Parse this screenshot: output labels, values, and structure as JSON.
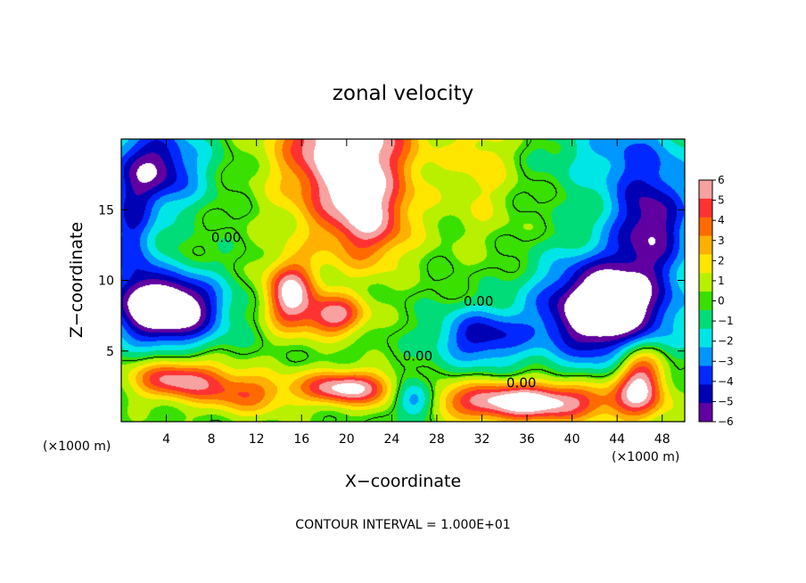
{
  "chart_data": {
    "type": "heatmap",
    "title": "zonal velocity",
    "xlabel": "X−coordinate",
    "ylabel": "Z−coordinate",
    "x_unit_label_left": "(×1000 m)",
    "x_unit_label_right": "(×1000 m)",
    "footer": "CONTOUR INTERVAL = 1.000E+01",
    "xlim": [
      0,
      50
    ],
    "ylim": [
      0,
      20
    ],
    "x_ticks": [
      4,
      8,
      12,
      16,
      20,
      24,
      28,
      32,
      36,
      40,
      44,
      48
    ],
    "y_ticks": [
      5,
      10,
      15
    ],
    "colorbar": {
      "min": -6,
      "max": 6,
      "ticks": [
        6,
        5,
        4,
        3,
        2,
        1,
        0,
        -1,
        -2,
        -3,
        -4,
        -5,
        -6
      ],
      "tick_labels": [
        "6",
        "5",
        "4",
        "3",
        "2",
        "1",
        "0",
        "−1",
        "−2",
        "−3",
        "−4",
        "−5",
        "−6"
      ],
      "colors": [
        "#f7a1a1",
        "#ff3232",
        "#ff6a00",
        "#ffb000",
        "#ffe600",
        "#b8f000",
        "#3ae000",
        "#00dc78",
        "#00e6e6",
        "#0096ff",
        "#0028ff",
        "#0000b4",
        "#6000a0"
      ],
      "over_color": "#ffffff",
      "under_color": "#ffffff"
    },
    "contour_labels": [
      {
        "text": "0.00",
        "x": 9.3,
        "z": 13.0
      },
      {
        "text": "0.00",
        "x": 31.7,
        "z": 8.5
      },
      {
        "text": "0.00",
        "x": 26.3,
        "z": 4.6
      },
      {
        "text": "0.00",
        "x": 35.5,
        "z": 2.7
      }
    ],
    "features": [
      {
        "kind": "jet",
        "sign": 1,
        "x": 20,
        "z": 20,
        "sx": 5.5,
        "sz": 6,
        "amp": 9
      },
      {
        "kind": "jet",
        "sign": 1,
        "x": 22,
        "z": 14,
        "sx": 3.5,
        "sz": 3,
        "amp": 4
      },
      {
        "kind": "jet",
        "sign": 1,
        "x": 15,
        "z": 9,
        "sx": 2.2,
        "sz": 2.4,
        "amp": 7
      },
      {
        "kind": "jet",
        "sign": 1,
        "x": 19,
        "z": 7.5,
        "sx": 2.6,
        "sz": 1.4,
        "amp": 6
      },
      {
        "kind": "jet",
        "sign": 1,
        "x": 5,
        "z": 3,
        "sx": 4,
        "sz": 1.4,
        "amp": 6
      },
      {
        "kind": "jet",
        "sign": 1,
        "x": 11,
        "z": 2,
        "sx": 4,
        "sz": 1.5,
        "amp": 4
      },
      {
        "kind": "jet",
        "sign": 1,
        "x": 20,
        "z": 2.4,
        "sx": 4,
        "sz": 1.2,
        "amp": 7
      },
      {
        "kind": "jet",
        "sign": 1,
        "x": 36,
        "z": 1.4,
        "sx": 8,
        "sz": 1.4,
        "amp": 8
      },
      {
        "kind": "jet",
        "sign": 1,
        "x": 46,
        "z": 3,
        "sx": 2.2,
        "sz": 2.6,
        "amp": 7
      },
      {
        "kind": "jet",
        "sign": 1,
        "x": 32,
        "z": 19,
        "sx": 3,
        "sz": 6,
        "amp": 2
      },
      {
        "kind": "jet",
        "sign": -1,
        "x": 3,
        "z": 18,
        "sx": 4,
        "sz": 3,
        "amp": 6
      },
      {
        "kind": "jet",
        "sign": -1,
        "x": 4,
        "z": 8,
        "sx": 4.5,
        "sz": 2.4,
        "amp": 10
      },
      {
        "kind": "jet",
        "sign": -1,
        "x": 43,
        "z": 8,
        "sx": 5.5,
        "sz": 3.5,
        "amp": 10
      },
      {
        "kind": "jet",
        "sign": -1,
        "x": 47,
        "z": 14,
        "sx": 3.5,
        "sz": 3.5,
        "amp": 6
      },
      {
        "kind": "jet",
        "sign": -1,
        "x": 45,
        "z": 19,
        "sx": 6,
        "sz": 3,
        "amp": 3
      },
      {
        "kind": "jet",
        "sign": -1,
        "x": 32,
        "z": 6,
        "sx": 4,
        "sz": 2,
        "amp": 5
      },
      {
        "kind": "jet",
        "sign": -1,
        "x": 26,
        "z": 1.5,
        "sx": 1.8,
        "sz": 1.5,
        "amp": 5
      },
      {
        "kind": "jet",
        "sign": -1,
        "x": 1,
        "z": 13,
        "sx": 2,
        "sz": 4,
        "amp": 4
      }
    ]
  }
}
